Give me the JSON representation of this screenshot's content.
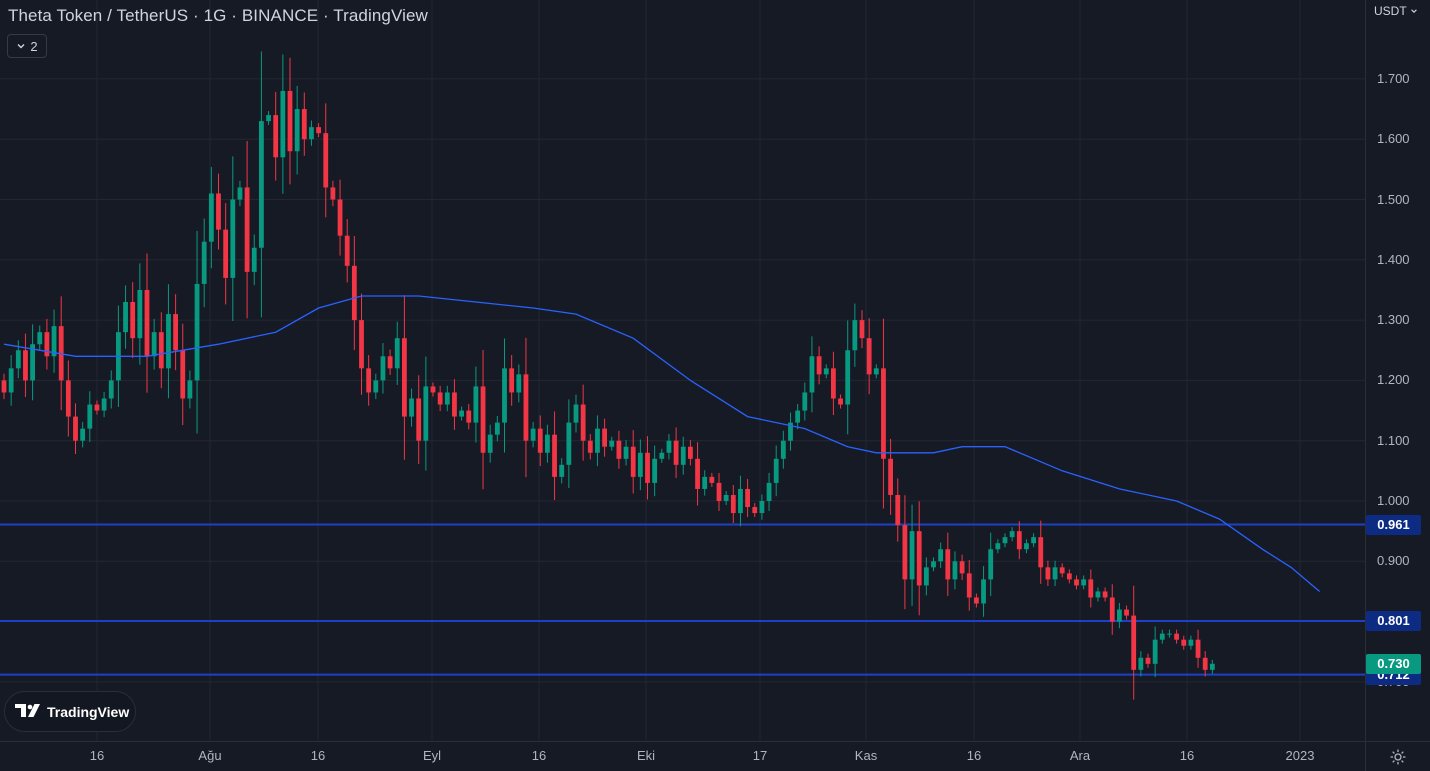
{
  "header": {
    "title": "Theta Token / TetherUS · 1G · BINANCE · TradingView",
    "collapse_count": "2",
    "currency": "USDT"
  },
  "branding": {
    "logo_text": "TradingView"
  },
  "price_axis": {
    "ticks": [
      "1.700",
      "1.600",
      "1.500",
      "1.400",
      "1.300",
      "1.200",
      "1.100",
      "1.000",
      "0.900",
      "0.700"
    ]
  },
  "time_axis": {
    "labels": [
      "16",
      "Ağu",
      "16",
      "Eyl",
      "16",
      "Eki",
      "17",
      "Kas",
      "16",
      "Ara",
      "16",
      "2023"
    ]
  },
  "price_tags": [
    {
      "label": "0.961",
      "value": 0.961,
      "color": "#0d2b82"
    },
    {
      "label": "0.801",
      "value": 0.801,
      "color": "#0d2b82"
    },
    {
      "label": "0.712",
      "value": 0.712,
      "color": "#0d2b82"
    },
    {
      "label": "0.730",
      "value": 0.73,
      "color": "#089981"
    }
  ],
  "colors": {
    "up": "#089981",
    "down": "#f23645",
    "ma": "#2962ff",
    "hline": "#1e40c8",
    "grid": "#232733",
    "background": "#161a25"
  },
  "chart_data": {
    "type": "candlestick",
    "symbol": "Theta Token / TetherUS",
    "interval": "1G",
    "exchange": "BINANCE",
    "ylim": [
      0.69,
      1.73
    ],
    "horizontal_lines": [
      0.961,
      0.801,
      0.712
    ],
    "last_price": 0.73,
    "closes": [
      1.18,
      1.22,
      1.25,
      1.2,
      1.26,
      1.28,
      1.24,
      1.29,
      1.2,
      1.14,
      1.1,
      1.12,
      1.16,
      1.15,
      1.17,
      1.2,
      1.28,
      1.33,
      1.27,
      1.35,
      1.24,
      1.28,
      1.22,
      1.31,
      1.25,
      1.17,
      1.2,
      1.36,
      1.43,
      1.51,
      1.45,
      1.37,
      1.5,
      1.52,
      1.38,
      1.42,
      1.63,
      1.64,
      1.57,
      1.68,
      1.58,
      1.65,
      1.6,
      1.62,
      1.61,
      1.52,
      1.5,
      1.44,
      1.39,
      1.3,
      1.22,
      1.18,
      1.2,
      1.24,
      1.22,
      1.27,
      1.14,
      1.17,
      1.1,
      1.19,
      1.18,
      1.16,
      1.18,
      1.14,
      1.15,
      1.13,
      1.19,
      1.08,
      1.11,
      1.13,
      1.22,
      1.18,
      1.21,
      1.1,
      1.12,
      1.08,
      1.11,
      1.04,
      1.06,
      1.13,
      1.16,
      1.1,
      1.08,
      1.12,
      1.09,
      1.1,
      1.07,
      1.09,
      1.04,
      1.08,
      1.03,
      1.07,
      1.08,
      1.1,
      1.06,
      1.09,
      1.07,
      1.02,
      1.04,
      1.03,
      1.0,
      1.01,
      0.98,
      1.02,
      0.99,
      0.98,
      1.0,
      1.03,
      1.07,
      1.1,
      1.13,
      1.15,
      1.18,
      1.24,
      1.21,
      1.22,
      1.17,
      1.16,
      1.25,
      1.3,
      1.27,
      1.21,
      1.22,
      1.07,
      1.01,
      0.96,
      0.87,
      0.95,
      0.86,
      0.89,
      0.9,
      0.92,
      0.87,
      0.9,
      0.88,
      0.84,
      0.83,
      0.87,
      0.92,
      0.93,
      0.94,
      0.95,
      0.92,
      0.93,
      0.94,
      0.89,
      0.87,
      0.89,
      0.88,
      0.87,
      0.86,
      0.87,
      0.84,
      0.85,
      0.84,
      0.8,
      0.82,
      0.81,
      0.72,
      0.74,
      0.73,
      0.77,
      0.78,
      0.78,
      0.77,
      0.76,
      0.77,
      0.74,
      0.72,
      0.73
    ],
    "ma_points": [
      [
        0,
        1.26
      ],
      [
        10,
        1.24
      ],
      [
        20,
        1.24
      ],
      [
        30,
        1.26
      ],
      [
        38,
        1.28
      ],
      [
        44,
        1.32
      ],
      [
        50,
        1.34
      ],
      [
        58,
        1.34
      ],
      [
        66,
        1.33
      ],
      [
        74,
        1.32
      ],
      [
        80,
        1.31
      ],
      [
        88,
        1.27
      ],
      [
        96,
        1.2
      ],
      [
        104,
        1.14
      ],
      [
        112,
        1.12
      ],
      [
        118,
        1.09
      ],
      [
        122,
        1.08
      ],
      [
        130,
        1.08
      ],
      [
        134,
        1.09
      ],
      [
        140,
        1.09
      ],
      [
        148,
        1.05
      ],
      [
        156,
        1.02
      ],
      [
        164,
        1.0
      ],
      [
        170,
        0.97
      ],
      [
        176,
        0.92
      ],
      [
        180,
        0.89
      ],
      [
        184,
        0.85
      ]
    ]
  }
}
